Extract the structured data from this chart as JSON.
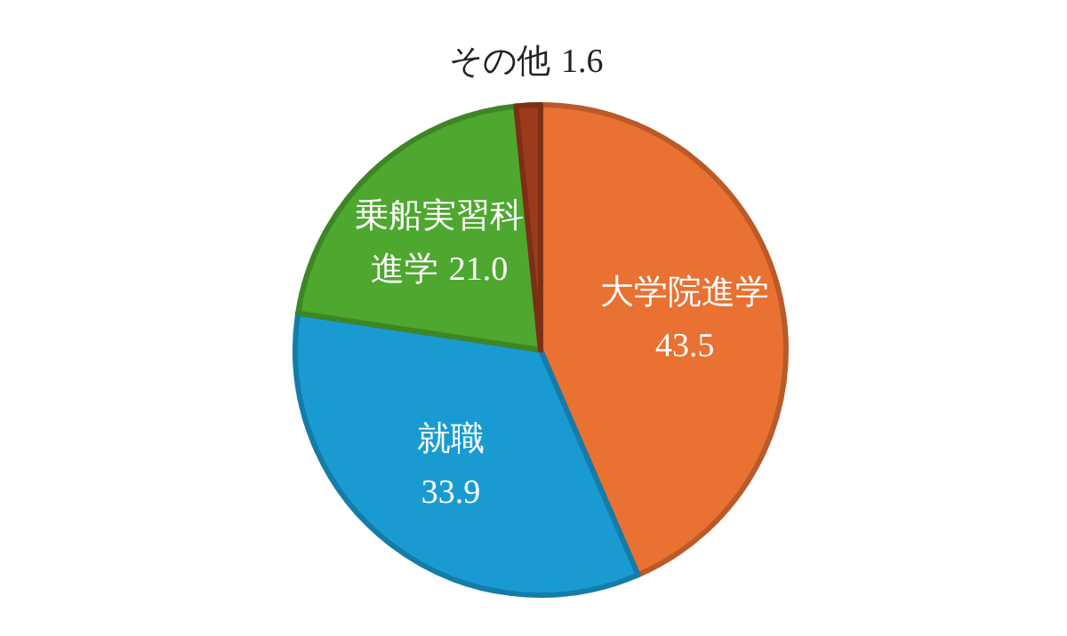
{
  "chart_data": {
    "type": "pie",
    "categories": [
      "大学院進学",
      "就職",
      "乗船実習科進学",
      "その他"
    ],
    "values": [
      43.5,
      33.9,
      21.0,
      1.6
    ],
    "colors": [
      "#e97132",
      "#199bd2",
      "#4ea72e",
      "#9c3a1c"
    ],
    "value_labels": [
      "43.5",
      "33.9",
      "21.0",
      "1.6"
    ]
  }
}
